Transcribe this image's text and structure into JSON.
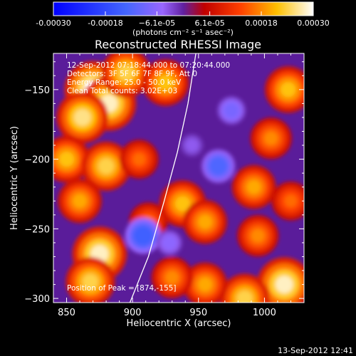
{
  "chart_data": {
    "type": "heatmap",
    "title": "Reconstructed RHESSI Image",
    "xlabel": "Heliocentric X (arcsec)",
    "ylabel": "Heliocentric Y (arcsec)",
    "xlim": [
      840,
      1030
    ],
    "ylim": [
      -303,
      -124
    ],
    "x_ticks": [
      850,
      900,
      950,
      1000
    ],
    "y_ticks": [
      -150,
      -200,
      -250,
      -300
    ],
    "x_tick_labels": [
      "850",
      "900",
      "950",
      "1000"
    ],
    "y_tick_labels": [
      "−150",
      "−200",
      "−250",
      "−300"
    ],
    "colorbar": {
      "min": -0.0003,
      "max": 0.0003,
      "tick_values": [
        -0.0003,
        -0.00018,
        -6.1e-05,
        6.1e-05,
        0.00018,
        0.0003
      ],
      "tick_labels": [
        "-0.00030",
        "-0.00018",
        "−6.1e-05",
        "6.1e-05",
        "0.00018",
        "0.00030"
      ],
      "unit": "(photons cm⁻² s⁻¹ asec⁻²)"
    },
    "annotations": [
      "12-Sep-2012 07:18:44.000 to 07:20:44.000",
      "Detectors: 3F 5F 6F 7F 8F 9F, Att 0",
      "Energy Range: 25.0 - 50.0 keV",
      "Clean    Total counts: 3.02E+03",
      "Position of Peak = [874,-155]"
    ],
    "peak": {
      "x": 874,
      "y": -155
    },
    "limb_curve": [
      [
        898,
        -303
      ],
      [
        912,
        -270
      ],
      [
        924,
        -230
      ],
      [
        934,
        -195
      ],
      [
        942,
        -160
      ],
      [
        948,
        -124
      ]
    ],
    "intensity_blobs": [
      {
        "x": 870,
        "y": -150,
        "value": 0.0003
      },
      {
        "x": 882,
        "y": -160,
        "value": 0.00028
      },
      {
        "x": 862,
        "y": -170,
        "value": 0.00026
      },
      {
        "x": 895,
        "y": -138,
        "value": 0.00024
      },
      {
        "x": 925,
        "y": -145,
        "value": 0.00022
      },
      {
        "x": 850,
        "y": -200,
        "value": 0.00022
      },
      {
        "x": 880,
        "y": -205,
        "value": 0.00024
      },
      {
        "x": 860,
        "y": -230,
        "value": 0.0002
      },
      {
        "x": 875,
        "y": -268,
        "value": 0.00028
      },
      {
        "x": 868,
        "y": -288,
        "value": 0.00024
      },
      {
        "x": 912,
        "y": -245,
        "value": 0.00016
      },
      {
        "x": 938,
        "y": -232,
        "value": 0.00022
      },
      {
        "x": 955,
        "y": -245,
        "value": 0.0002
      },
      {
        "x": 992,
        "y": -220,
        "value": 0.0002
      },
      {
        "x": 1018,
        "y": -150,
        "value": 0.00022
      },
      {
        "x": 1005,
        "y": -185,
        "value": 0.00018
      },
      {
        "x": 1020,
        "y": -230,
        "value": 0.00016
      },
      {
        "x": 995,
        "y": -255,
        "value": 0.00018
      },
      {
        "x": 1015,
        "y": -290,
        "value": 0.00028
      },
      {
        "x": 985,
        "y": -300,
        "value": 0.00024
      },
      {
        "x": 955,
        "y": -290,
        "value": 0.0002
      },
      {
        "x": 930,
        "y": -285,
        "value": 0.00018
      },
      {
        "x": 905,
        "y": -200,
        "value": 0.00016
      },
      {
        "x": 945,
        "y": -190,
        "value": -4e-05
      },
      {
        "x": 965,
        "y": -205,
        "value": -0.00012
      },
      {
        "x": 975,
        "y": -165,
        "value": -8e-05
      },
      {
        "x": 908,
        "y": -255,
        "value": -0.00014
      },
      {
        "x": 928,
        "y": -260,
        "value": -6e-05
      }
    ]
  },
  "footer": {
    "timestamp": "13-Sep-2012 12:41"
  }
}
